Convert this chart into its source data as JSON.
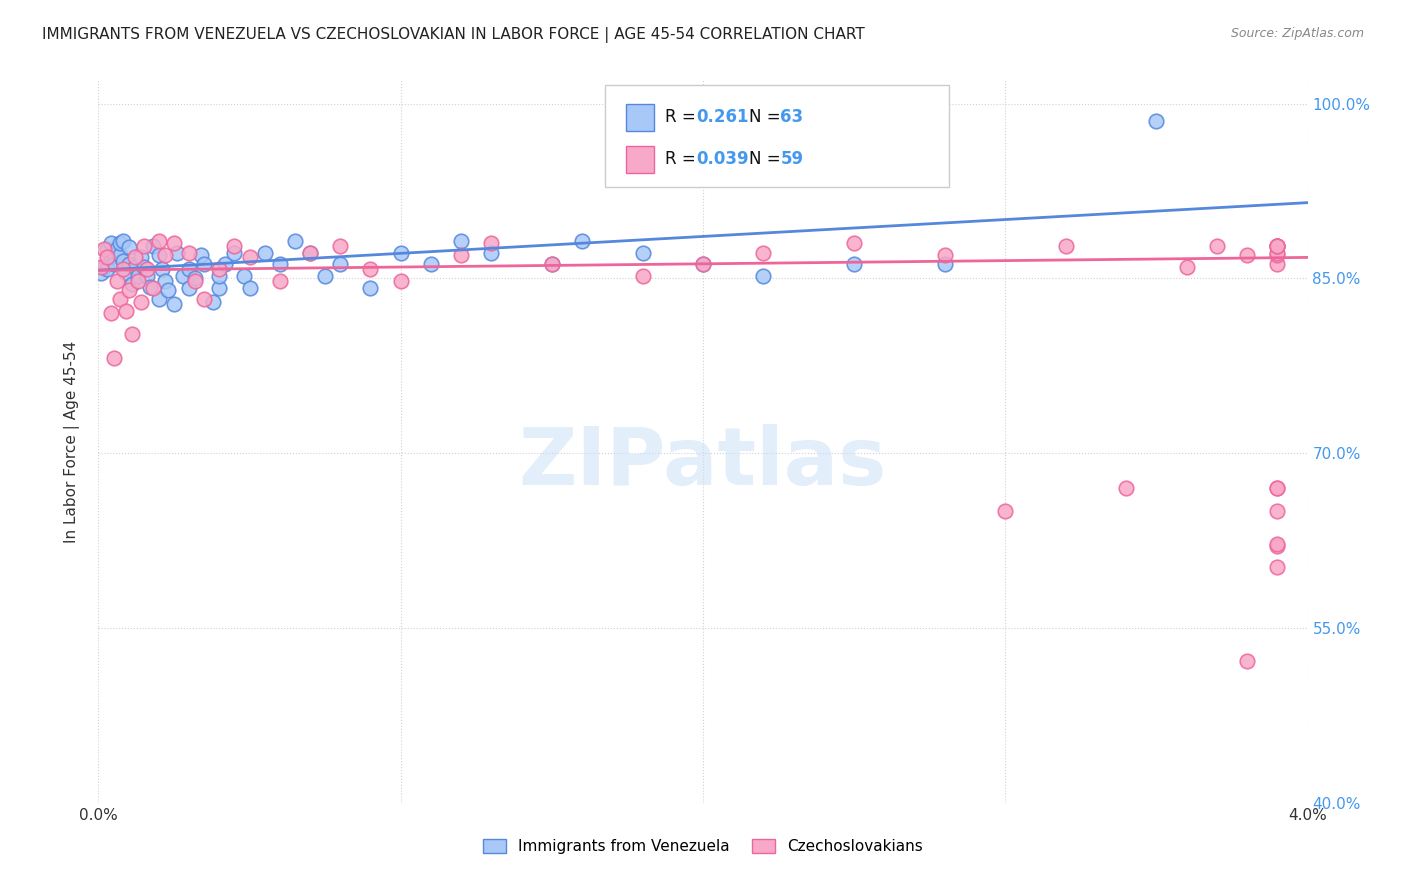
{
  "title": "IMMIGRANTS FROM VENEZUELA VS CZECHOSLOVAKIAN IN LABOR FORCE | AGE 45-54 CORRELATION CHART",
  "source": "Source: ZipAtlas.com",
  "ylabel": "In Labor Force | Age 45-54",
  "x_min": 0.0,
  "x_max": 0.04,
  "y_min": 0.4,
  "y_max": 1.02,
  "x_tick_pos": [
    0.0,
    0.01,
    0.02,
    0.03,
    0.04
  ],
  "x_tick_labels": [
    "0.0%",
    "",
    "",
    "",
    "4.0%"
  ],
  "y_tick_pos": [
    0.4,
    0.55,
    0.7,
    0.85,
    1.0
  ],
  "y_tick_labels": [
    "40.0%",
    "55.0%",
    "70.0%",
    "85.0%",
    "100.0%"
  ],
  "R1_val": "0.261",
  "N1_val": "63",
  "R2_val": "0.039",
  "N2_val": "59",
  "color_venezuela": "#a8c8f8",
  "color_czech": "#f8a8c8",
  "color_trend_venezuela": "#5588dd",
  "color_trend_czech": "#ee6699",
  "venezuela_x": [
    0.0001,
    0.0002,
    0.0003,
    0.0003,
    0.0004,
    0.0004,
    0.0005,
    0.0005,
    0.0006,
    0.0007,
    0.0007,
    0.0008,
    0.0008,
    0.0009,
    0.001,
    0.001,
    0.0011,
    0.0012,
    0.0013,
    0.0014,
    0.0015,
    0.0016,
    0.0017,
    0.0018,
    0.002,
    0.002,
    0.0021,
    0.0022,
    0.0023,
    0.0025,
    0.0026,
    0.0028,
    0.003,
    0.003,
    0.0032,
    0.0034,
    0.0035,
    0.0038,
    0.004,
    0.004,
    0.0042,
    0.0045,
    0.0048,
    0.005,
    0.0055,
    0.006,
    0.0065,
    0.007,
    0.0075,
    0.008,
    0.009,
    0.01,
    0.011,
    0.012,
    0.013,
    0.015,
    0.016,
    0.018,
    0.02,
    0.022,
    0.025,
    0.028,
    0.035
  ],
  "venezuela_y": [
    0.855,
    0.86,
    0.875,
    0.858,
    0.868,
    0.88,
    0.87,
    0.862,
    0.875,
    0.87,
    0.88,
    0.865,
    0.882,
    0.855,
    0.862,
    0.877,
    0.845,
    0.86,
    0.852,
    0.868,
    0.86,
    0.852,
    0.843,
    0.878,
    0.832,
    0.87,
    0.858,
    0.848,
    0.84,
    0.828,
    0.872,
    0.852,
    0.842,
    0.858,
    0.85,
    0.87,
    0.862,
    0.83,
    0.842,
    0.852,
    0.862,
    0.872,
    0.852,
    0.842,
    0.872,
    0.862,
    0.882,
    0.872,
    0.852,
    0.862,
    0.842,
    0.872,
    0.862,
    0.882,
    0.872,
    0.862,
    0.882,
    0.872,
    0.862,
    0.852,
    0.862,
    0.862,
    0.985
  ],
  "czech_x": [
    0.0001,
    0.0002,
    0.0003,
    0.0004,
    0.0005,
    0.0006,
    0.0007,
    0.0008,
    0.0009,
    0.001,
    0.0011,
    0.0012,
    0.0013,
    0.0014,
    0.0015,
    0.0016,
    0.0018,
    0.002,
    0.0022,
    0.0025,
    0.003,
    0.0032,
    0.0035,
    0.004,
    0.0045,
    0.005,
    0.006,
    0.007,
    0.008,
    0.009,
    0.01,
    0.012,
    0.013,
    0.015,
    0.018,
    0.02,
    0.022,
    0.025,
    0.028,
    0.03,
    0.032,
    0.034,
    0.036,
    0.037,
    0.038,
    0.038,
    0.039,
    0.039,
    0.039,
    0.039,
    0.039,
    0.039,
    0.039,
    0.039,
    0.039,
    0.039,
    0.039,
    0.039,
    0.039
  ],
  "czech_y": [
    0.86,
    0.875,
    0.868,
    0.82,
    0.782,
    0.848,
    0.832,
    0.858,
    0.822,
    0.84,
    0.802,
    0.868,
    0.848,
    0.83,
    0.878,
    0.858,
    0.842,
    0.882,
    0.87,
    0.88,
    0.872,
    0.848,
    0.832,
    0.858,
    0.878,
    0.868,
    0.848,
    0.872,
    0.878,
    0.858,
    0.848,
    0.87,
    0.88,
    0.862,
    0.852,
    0.862,
    0.872,
    0.88,
    0.87,
    0.65,
    0.878,
    0.67,
    0.86,
    0.878,
    0.87,
    0.522,
    0.602,
    0.862,
    0.87,
    0.878,
    0.65,
    0.878,
    0.67,
    0.872,
    0.62,
    0.878,
    0.67,
    0.622,
    0.878
  ],
  "ven_trend_x": [
    0.0,
    0.04
  ],
  "ven_trend_y": [
    0.857,
    0.915
  ],
  "cze_trend_x": [
    0.0,
    0.04
  ],
  "cze_trend_y": [
    0.857,
    0.868
  ]
}
